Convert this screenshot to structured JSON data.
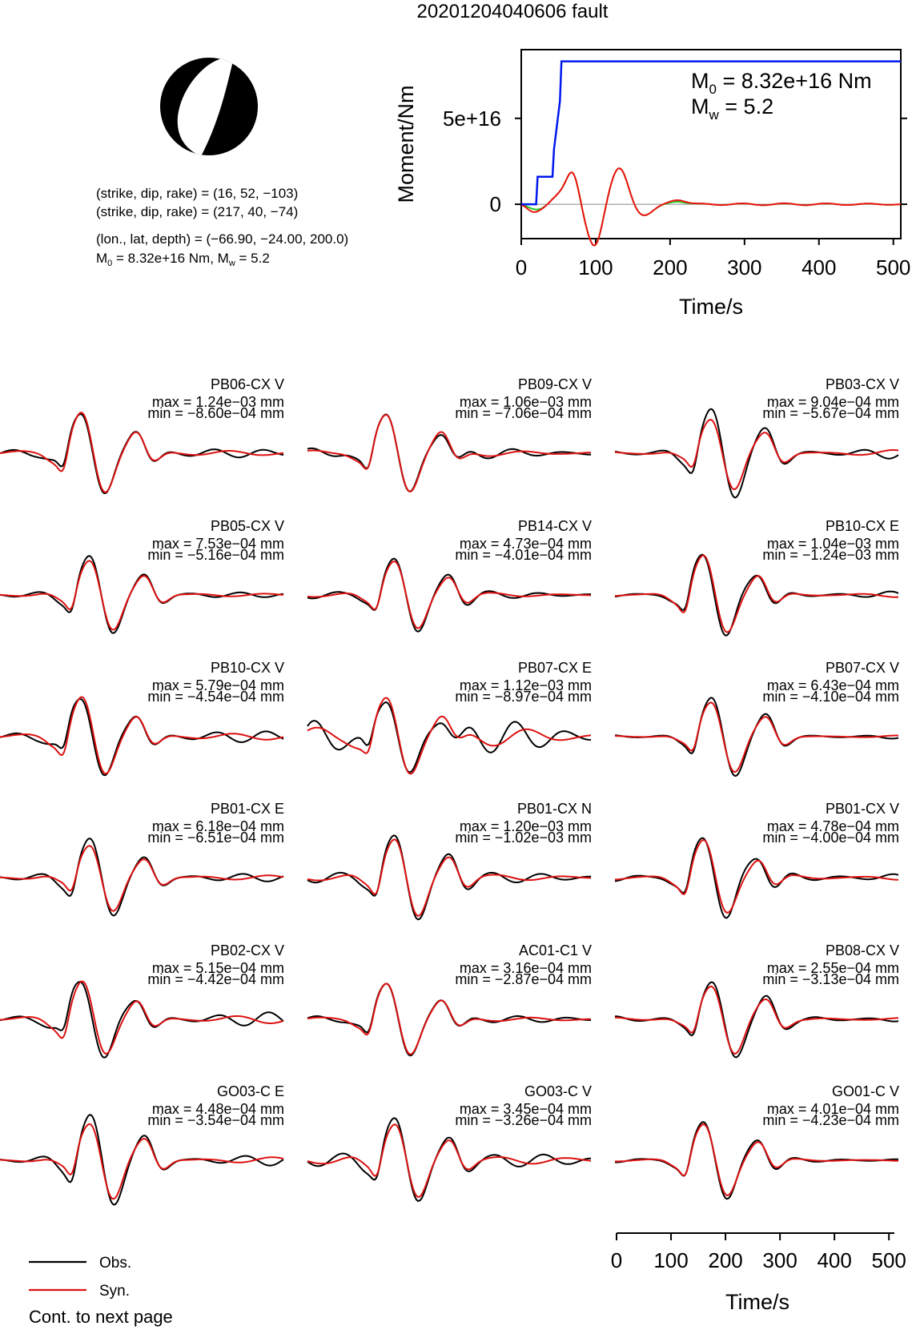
{
  "title": "20201204040606 fault",
  "source_params": {
    "nodal_plane_1": "(strike, dip, rake) = (16, 52, −103)",
    "nodal_plane_2": "(strike, dip, rake) = (217, 40, −74)",
    "location": "(lon., lat, depth) = (−66.90, −24.00, 200.0)",
    "moment_prefix": "M",
    "moment_sub": "0",
    "moment_text": " = 8.32e+16 Nm, M",
    "mw_sub": "w",
    "mw_text": " = 5.2"
  },
  "moment_plot": {
    "ylabel": "Moment/Nm",
    "xlabel": "Time/s",
    "x_ticks": [
      "0",
      "100",
      "200",
      "300",
      "400",
      "500"
    ],
    "y_ticks": [
      "0",
      "5e+16"
    ],
    "m0_prefix": "M",
    "m0_sub": "0",
    "m0_value": " = 8.32e+16 Nm",
    "mw_prefix": "M",
    "mw_sub": "w",
    "mw_value": " = 5.2"
  },
  "chart_data": {
    "type": "line",
    "moment_function": {
      "x": [
        0,
        20,
        22,
        42,
        44,
        52,
        54,
        510
      ],
      "y": [
        0,
        0,
        1.6e+16,
        1.6e+16,
        3.2e+16,
        6e+16,
        8.32e+16,
        8.32e+16
      ],
      "xlim": [
        0,
        510
      ],
      "ylim": [
        -2e+16,
        9e+16
      ],
      "color": "#0018ee"
    },
    "stf_overlay_colors": [
      "#ee1111",
      "#22cc22"
    ],
    "waveform_time_axis": {
      "xlabel": "Time/s",
      "ticks": [
        "0",
        "100",
        "200",
        "300",
        "400",
        "500"
      ],
      "xlim": [
        0,
        510
      ]
    },
    "traces": [
      {
        "station": "PB06-CX V",
        "max": "max = 1.24e−03 mm",
        "min": "min = −8.60e−04 mm"
      },
      {
        "station": "PB09-CX V",
        "max": "max = 1.06e−03 mm",
        "min": "min = −7.06e−04 mm"
      },
      {
        "station": "PB03-CX V",
        "max": "max = 9.04e−04 mm",
        "min": "min = −5.67e−04 mm"
      },
      {
        "station": "PB05-CX V",
        "max": "max = 7.53e−04 mm",
        "min": "min = −5.16e−04 mm"
      },
      {
        "station": "PB14-CX V",
        "max": "max = 4.73e−04 mm",
        "min": "min = −4.01e−04 mm"
      },
      {
        "station": "PB10-CX E",
        "max": "max = 1.04e−03 mm",
        "min": "min = −1.24e−03 mm"
      },
      {
        "station": "PB10-CX V",
        "max": "max = 5.79e−04 mm",
        "min": "min = −4.54e−04 mm"
      },
      {
        "station": "PB07-CX E",
        "max": "max = 1.12e−03 mm",
        "min": "min = −8.97e−04 mm"
      },
      {
        "station": "PB07-CX V",
        "max": "max = 6.43e−04 mm",
        "min": "min = −4.10e−04 mm"
      },
      {
        "station": "PB01-CX E",
        "max": "max = 6.18e−04 mm",
        "min": "min = −6.51e−04 mm"
      },
      {
        "station": "PB01-CX N",
        "max": "max = 1.20e−03 mm",
        "min": "min = −1.02e−03 mm"
      },
      {
        "station": "PB01-CX V",
        "max": "max = 4.78e−04 mm",
        "min": "min = −4.00e−04 mm"
      },
      {
        "station": "PB02-CX V",
        "max": "max = 5.15e−04 mm",
        "min": "min = −4.42e−04 mm"
      },
      {
        "station": "AC01-C1 V",
        "max": "max = 3.16e−04 mm",
        "min": "min = −2.87e−04 mm"
      },
      {
        "station": "PB08-CX V",
        "max": "max = 2.55e−04 mm",
        "min": "min = −3.13e−04 mm"
      },
      {
        "station": "GO03-C E",
        "max": "max = 4.48e−04 mm",
        "min": "min = −3.54e−04 mm"
      },
      {
        "station": "GO03-C V",
        "max": "max = 3.45e−04 mm",
        "min": "min = −3.26e−04 mm"
      },
      {
        "station": "GO01-C V",
        "max": "max = 4.01e−04 mm",
        "min": "min = −4.23e−04 mm"
      }
    ],
    "colors": {
      "observed": "#000000",
      "synthetic": "#dd1111"
    }
  },
  "legend": {
    "observed_label": "Obs.",
    "synthetic_label": "Syn.",
    "footer": "Cont. to next page"
  }
}
